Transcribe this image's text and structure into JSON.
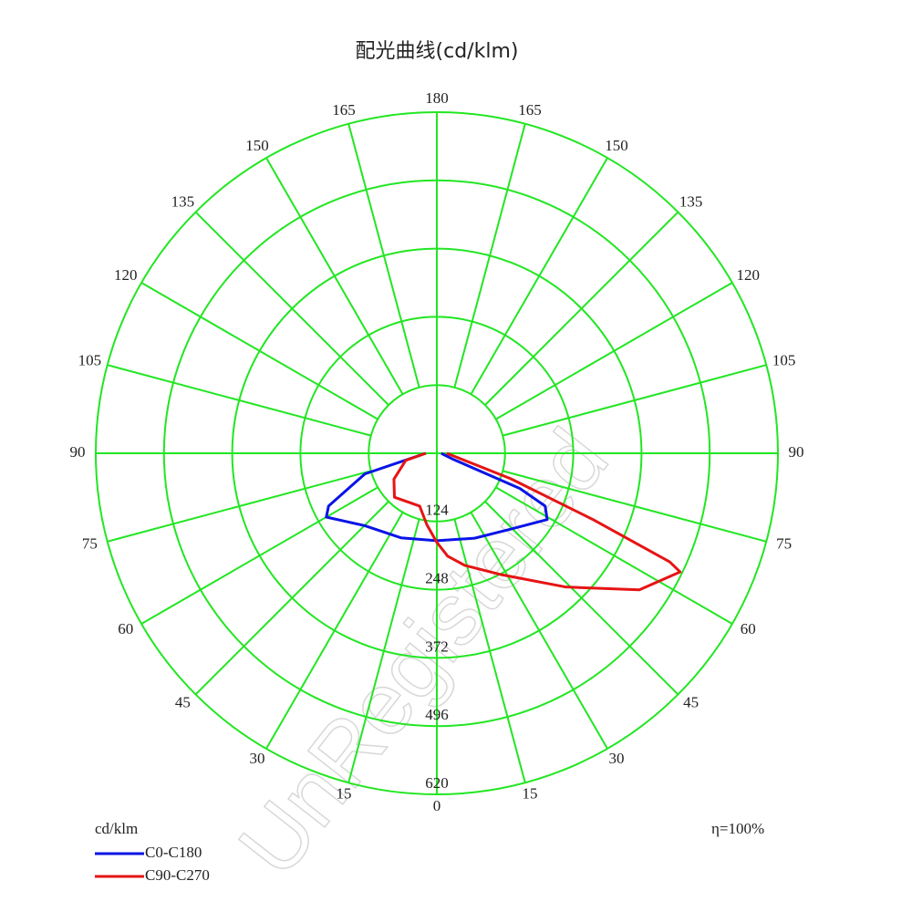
{
  "chart_data": {
    "type": "polar",
    "title": "配光曲线(cd/klm)",
    "unit_label": "cd/klm",
    "efficiency": "η=100%",
    "watermark": "UnRegistered",
    "grid_color": "#22e622",
    "rlim": [
      0,
      620
    ],
    "rticks": [
      124,
      248,
      372,
      496,
      620
    ],
    "angle_ticks": [
      0,
      15,
      30,
      45,
      60,
      75,
      90,
      105,
      120,
      135,
      150,
      165,
      180
    ],
    "series": [
      {
        "name": "C0-C180",
        "color": "#0a14e6",
        "angles": [
          -90,
          -74,
          -64,
          -60,
          -45,
          -23,
          0,
          24,
          44,
          59,
          64,
          67,
          70,
          80,
          90
        ],
        "values": [
          20,
          136,
          219,
          232,
          186,
          167,
          159,
          169,
          192,
          234,
          219,
          164,
          30,
          12,
          8
        ]
      },
      {
        "name": "C90-C270",
        "color": "#e61414",
        "angles": [
          -90,
          -77,
          -59,
          -44,
          -18,
          -8,
          0,
          6,
          14,
          28,
          44,
          56,
          64,
          65,
          67,
          71,
          90
        ],
        "values": [
          20,
          58,
          91,
          111,
          101,
          131,
          162,
          188,
          210,
          250,
          338,
          444,
          492,
          467,
          308,
          142,
          18
        ]
      }
    ]
  }
}
